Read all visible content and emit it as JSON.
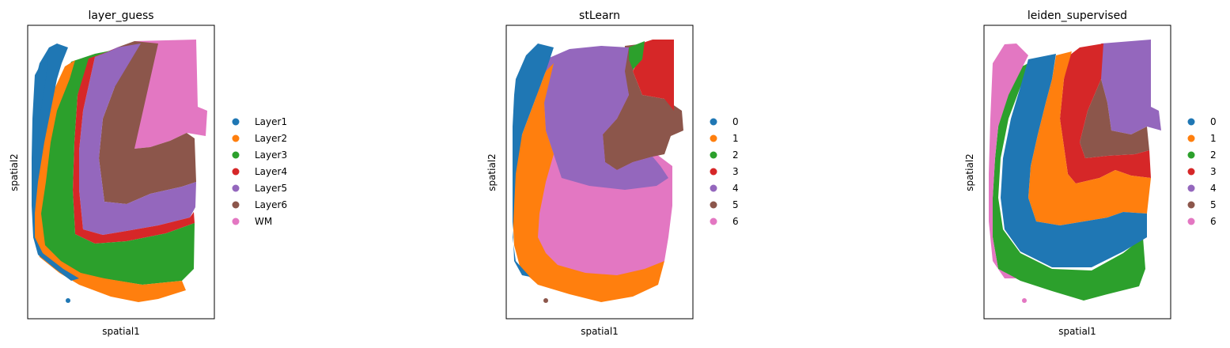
{
  "chart_data": [
    {
      "type": "scatter",
      "title": "layer_guess",
      "xlabel": "spatial1",
      "ylabel": "spatial2",
      "grid": false,
      "ticks": false,
      "legend_position": "right",
      "legend": [
        {
          "label": "Layer1",
          "color": "#1f77b4"
        },
        {
          "label": "Layer2",
          "color": "#ff7f0e"
        },
        {
          "label": "Layer3",
          "color": "#2ca02c"
        },
        {
          "label": "Layer4",
          "color": "#d62728"
        },
        {
          "label": "Layer5",
          "color": "#9467bd"
        },
        {
          "label": "Layer6",
          "color": "#8c564b"
        },
        {
          "label": "WM",
          "color": "#e377c2"
        }
      ]
    },
    {
      "type": "scatter",
      "title": "stLearn",
      "xlabel": "spatial1",
      "ylabel": "spatial2",
      "grid": false,
      "ticks": false,
      "legend_position": "right",
      "legend": [
        {
          "label": "0",
          "color": "#1f77b4"
        },
        {
          "label": "1",
          "color": "#ff7f0e"
        },
        {
          "label": "2",
          "color": "#2ca02c"
        },
        {
          "label": "3",
          "color": "#d62728"
        },
        {
          "label": "4",
          "color": "#9467bd"
        },
        {
          "label": "5",
          "color": "#8c564b"
        },
        {
          "label": "6",
          "color": "#e377c2"
        }
      ]
    },
    {
      "type": "scatter",
      "title": "leiden_supervised",
      "xlabel": "spatial1",
      "ylabel": "spatial2",
      "grid": false,
      "ticks": false,
      "legend_position": "right",
      "legend": [
        {
          "label": "0",
          "color": "#1f77b4"
        },
        {
          "label": "1",
          "color": "#ff7f0e"
        },
        {
          "label": "2",
          "color": "#2ca02c"
        },
        {
          "label": "3",
          "color": "#d62728"
        },
        {
          "label": "4",
          "color": "#9467bd"
        },
        {
          "label": "5",
          "color": "#8c564b"
        },
        {
          "label": "6",
          "color": "#e377c2"
        }
      ]
    }
  ]
}
